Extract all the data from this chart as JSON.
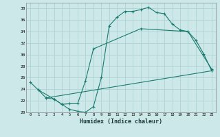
{
  "xlabel": "Humidex (Indice chaleur)",
  "bg_color": "#cce8e8",
  "line_color": "#1a7a6e",
  "grid_color": "#aacece",
  "xlim": [
    -0.5,
    23.5
  ],
  "ylim": [
    20,
    39
  ],
  "xticks": [
    0,
    1,
    2,
    3,
    4,
    5,
    6,
    7,
    8,
    9,
    10,
    11,
    12,
    13,
    14,
    15,
    16,
    17,
    18,
    19,
    20,
    21,
    22,
    23
  ],
  "yticks": [
    20,
    22,
    24,
    26,
    28,
    30,
    32,
    34,
    36,
    38
  ],
  "line1_x": [
    0,
    1,
    2,
    3,
    4,
    5,
    6,
    7,
    8,
    9,
    10,
    11,
    12,
    13,
    14,
    15,
    16,
    17,
    18,
    19,
    20,
    21,
    22,
    23
  ],
  "line1_y": [
    25.2,
    23.9,
    22.5,
    22.3,
    21.4,
    20.5,
    20.2,
    20.0,
    21.0,
    26.0,
    35.0,
    36.5,
    37.5,
    37.5,
    37.8,
    38.2,
    37.3,
    37.1,
    35.3,
    34.3,
    34.0,
    32.5,
    30.1,
    27.2
  ],
  "line2_x": [
    1,
    3,
    4,
    5,
    6,
    7,
    8,
    14,
    20,
    23
  ],
  "line2_y": [
    23.9,
    22.3,
    21.4,
    21.5,
    21.5,
    25.5,
    31.0,
    34.5,
    34.0,
    27.5
  ],
  "line3_x": [
    2,
    23
  ],
  "line3_y": [
    22.5,
    27.2
  ]
}
